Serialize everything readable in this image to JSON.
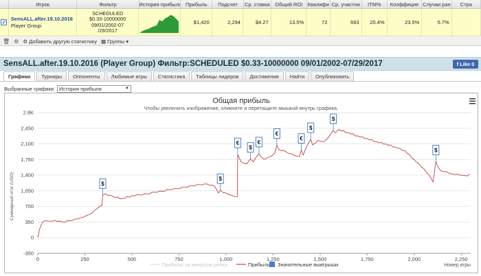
{
  "table": {
    "headers": [
      "Игрок",
      "Фильтр",
      "История прибыли",
      "Прибыль",
      "Подсчет",
      "Ср. ставка",
      "Общий ROI",
      "Квалифи",
      "Ср. участни",
      "ITM%",
      "Коэффицие",
      "Случаи ран",
      "Стра"
    ],
    "row": {
      "player": "SensALL.after.19.10.2016",
      "group": "Player Group",
      "filter_line1": "SCHEDULED",
      "filter_line2": "$0.33-10000000",
      "filter_line3": "09/01/2002-07",
      "filter_line4": "/29/2017",
      "profit": "$1,420",
      "count": "2,294",
      "avg_stake": "$4.27",
      "roi": "13.5%",
      "qualif": "72",
      "avg_entrants": "693",
      "itm": "20.4%",
      "coef": "23.5%",
      "early": "5.7%"
    },
    "checkbox_mark": "✓"
  },
  "toolbar": {
    "add_stats": "Добавить другую статистику",
    "groups": "Группы"
  },
  "title": "SensALL.after.19.10.2016 (Player Group) Фильтр:SCHEDULED $0.33-10000000 09/01/2002-07/29/2017",
  "like": {
    "label": "Like 0"
  },
  "tabs": [
    "Графики",
    "Турниры",
    "Оппоненты",
    "Любимые игры",
    "Статистика",
    "Таблицы лидеров",
    "Достижения",
    "Найти",
    "Опубликовать"
  ],
  "selector": {
    "label": "Выбранные графики:",
    "value": "История прибыли"
  },
  "chart_data": {
    "type": "line",
    "title": "Общая прибыль",
    "subtitle": "Чтобы увеличить изображение, кликните и перетащите мышкой внутрь графика.",
    "ylabel": "Суммарный итог (USD)",
    "xlabel": "Номер игры",
    "ylim": [
      -350,
      2800
    ],
    "xlim": [
      0,
      2294
    ],
    "y_ticks": [
      "-350",
      "0",
      "350",
      "700",
      "1,050",
      "1,400",
      "1,750",
      "2,100",
      "2,450",
      "2.8K"
    ],
    "y_tick_values": [
      -350,
      0,
      350,
      700,
      1050,
      1400,
      1750,
      2100,
      2450,
      2800
    ],
    "x_ticks": [
      "0",
      "250",
      "500",
      "750",
      "1,000",
      "1,250",
      "1,500",
      "1,750",
      "2,000",
      "2,250"
    ],
    "x_tick_values": [
      0,
      250,
      500,
      750,
      1000,
      1250,
      1500,
      1750,
      2000,
      2250
    ],
    "legend": [
      "Прибыль за минусом рейка",
      "Прибыль",
      "Значительные выигрыши"
    ],
    "series_color": "#c04040",
    "series": [
      {
        "name": "Прибыль",
        "x": [
          0,
          10,
          25,
          40,
          60,
          90,
          130,
          170,
          200,
          230,
          260,
          290,
          310,
          330,
          340,
          345,
          360,
          400,
          450,
          500,
          540,
          580,
          620,
          660,
          700,
          740,
          780,
          820,
          860,
          900,
          940,
          960,
          970,
          985,
          1000,
          1030,
          1060,
          1062,
          1080,
          1110,
          1130,
          1145,
          1160,
          1175,
          1185,
          1200,
          1240,
          1260,
          1270,
          1280,
          1320,
          1360,
          1390,
          1400,
          1410,
          1430,
          1450,
          1460,
          1490,
          1520,
          1550,
          1570,
          1580,
          1600,
          1650,
          1700,
          1750,
          1800,
          1850,
          1900,
          1950,
          2000,
          2050,
          2080,
          2100,
          2115,
          2125,
          2140,
          2170,
          2200,
          2230,
          2260,
          2280,
          2294
        ],
        "y": [
          0,
          200,
          350,
          380,
          370,
          390,
          350,
          380,
          420,
          450,
          500,
          560,
          640,
          700,
          720,
          950,
          980,
          920,
          880,
          940,
          960,
          980,
          1020,
          1040,
          1080,
          1100,
          1130,
          1160,
          1190,
          1200,
          1150,
          1000,
          1060,
          1010,
          1000,
          950,
          920,
          1860,
          1700,
          1650,
          1760,
          1700,
          1800,
          1880,
          1820,
          1760,
          1820,
          1900,
          2070,
          1980,
          1920,
          1850,
          1820,
          1960,
          1850,
          2060,
          2200,
          2080,
          2180,
          2150,
          2280,
          2400,
          2350,
          2420,
          2350,
          2280,
          2220,
          2150,
          2100,
          2030,
          1950,
          1750,
          1550,
          1400,
          1250,
          1700,
          1600,
          1500,
          1480,
          1430,
          1420,
          1400,
          1380,
          1420
        ]
      }
    ],
    "markers": [
      {
        "x": 345,
        "y": 950,
        "symbol": "$"
      },
      {
        "x": 970,
        "y": 1060,
        "symbol": "$"
      },
      {
        "x": 1062,
        "y": 1860,
        "symbol": "€"
      },
      {
        "x": 1130,
        "y": 1760,
        "symbol": "$"
      },
      {
        "x": 1175,
        "y": 1880,
        "symbol": "€"
      },
      {
        "x": 1270,
        "y": 2070,
        "symbol": "€"
      },
      {
        "x": 1400,
        "y": 1960,
        "symbol": "€"
      },
      {
        "x": 1450,
        "y": 2200,
        "symbol": "$"
      },
      {
        "x": 1570,
        "y": 2400,
        "symbol": "$"
      },
      {
        "x": 2115,
        "y": 1700,
        "symbol": "$"
      }
    ]
  }
}
